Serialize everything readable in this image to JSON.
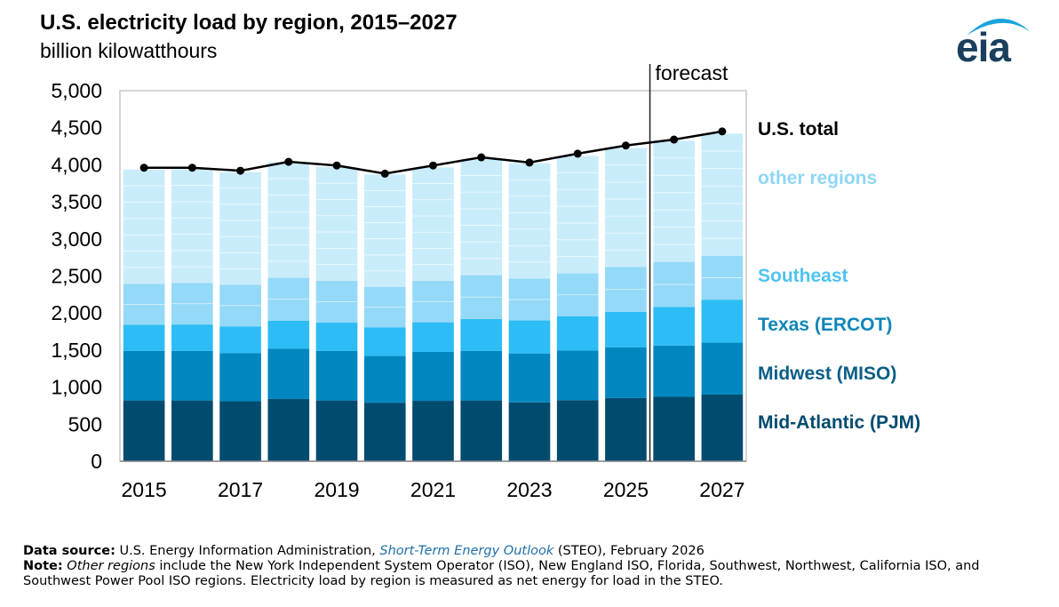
{
  "chart_data": {
    "type": "bar",
    "stacked": true,
    "title": "U.S. electricity load by region, 2015–2027",
    "subtitle": "billion kilowatthours",
    "x": [
      2015,
      2016,
      2017,
      2018,
      2019,
      2020,
      2021,
      2022,
      2023,
      2024,
      2025,
      2026,
      2027
    ],
    "x_tick_labels": [
      "2015",
      "2017",
      "2019",
      "2021",
      "2023",
      "2025",
      "2027"
    ],
    "y_ticks": [
      "0",
      "500",
      "1,000",
      "1,500",
      "2,000",
      "2,500",
      "3,000",
      "3,500",
      "4,000",
      "4,500",
      "5,000"
    ],
    "ylim": [
      0,
      5000
    ],
    "forecast_start_between": [
      2025,
      2026
    ],
    "forecast_label": "forecast",
    "series": [
      {
        "name": "Mid-Atlantic (PJM)",
        "color": "#004b6e",
        "values": [
          820,
          820,
          810,
          840,
          820,
          790,
          815,
          820,
          795,
          825,
          855,
          870,
          900
        ]
      },
      {
        "name": "Midwest (MISO)",
        "color": "#0087c0",
        "values": [
          670,
          670,
          650,
          680,
          670,
          630,
          660,
          670,
          660,
          670,
          680,
          690,
          700
        ]
      },
      {
        "name": "Texas (ERCOT)",
        "color": "#2dbcf5",
        "values": [
          350,
          355,
          360,
          375,
          380,
          385,
          400,
          430,
          445,
          460,
          480,
          520,
          580
        ]
      },
      {
        "name": "Southeast",
        "color": "#94d9f7",
        "values": [
          555,
          560,
          560,
          580,
          565,
          545,
          560,
          590,
          565,
          580,
          605,
          610,
          590
        ]
      },
      {
        "name": "other regions",
        "color": "#c9ecfb",
        "values": [
          1540,
          1535,
          1520,
          1560,
          1535,
          1520,
          1530,
          1570,
          1555,
          1585,
          1605,
          1635,
          1650
        ]
      }
    ],
    "total": {
      "name": "U.S. total",
      "color": "#000000",
      "values": [
        3960,
        3960,
        3920,
        4040,
        3990,
        3880,
        3990,
        4100,
        4030,
        4150,
        4260,
        4340,
        4450
      ]
    },
    "legend_placement": "right",
    "grid": false
  },
  "logo": {
    "text": "eia"
  },
  "footer": {
    "source_label": "Data source:",
    "source_text_1": " U.S. Energy Information Administration, ",
    "source_link": "Short-Term Energy Outlook",
    "source_text_2": " (STEO), February 2026",
    "note_label": "Note:",
    "note_italic": "Other regions",
    "note_text": " include the New York Independent System Operator (ISO), New England ISO, Florida, Southwest, Northwest, California ISO, and Southwest Power Pool ISO regions. Electricity load by region is measured as net energy for load in the STEO."
  }
}
